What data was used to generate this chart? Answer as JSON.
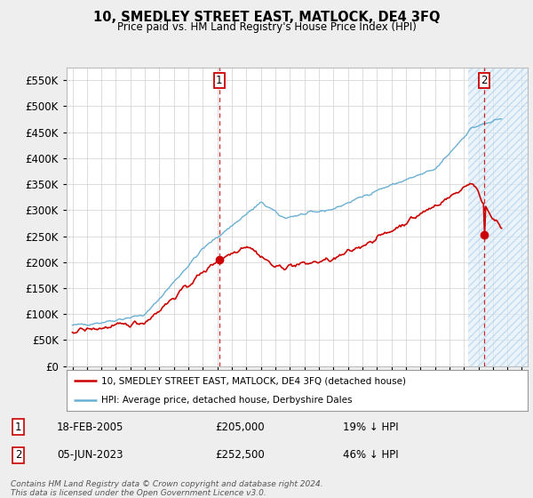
{
  "title": "10, SMEDLEY STREET EAST, MATLOCK, DE4 3FQ",
  "subtitle": "Price paid vs. HM Land Registry's House Price Index (HPI)",
  "legend_line1": "10, SMEDLEY STREET EAST, MATLOCK, DE4 3FQ (detached house)",
  "legend_line2": "HPI: Average price, detached house, Derbyshire Dales",
  "sale1_date": "18-FEB-2005",
  "sale1_price": "£205,000",
  "sale1_hpi": "19% ↓ HPI",
  "sale2_date": "05-JUN-2023",
  "sale2_price": "£252,500",
  "sale2_hpi": "46% ↓ HPI",
  "footer_line1": "Contains HM Land Registry data © Crown copyright and database right 2024.",
  "footer_line2": "This data is licensed under the Open Government Licence v3.0.",
  "hpi_color": "#6ab0d4",
  "price_color": "#cc0000",
  "background_color": "#eeeeee",
  "plot_bg_color": "#ffffff",
  "ylim": [
    0,
    575000
  ],
  "yticks": [
    0,
    50000,
    100000,
    150000,
    200000,
    250000,
    300000,
    350000,
    400000,
    450000,
    500000,
    550000
  ],
  "sale1_x": 2005.12,
  "sale1_y": 205000,
  "sale2_x": 2023.42,
  "sale2_y": 252500,
  "xmin": 1994.6,
  "xmax": 2026.4
}
